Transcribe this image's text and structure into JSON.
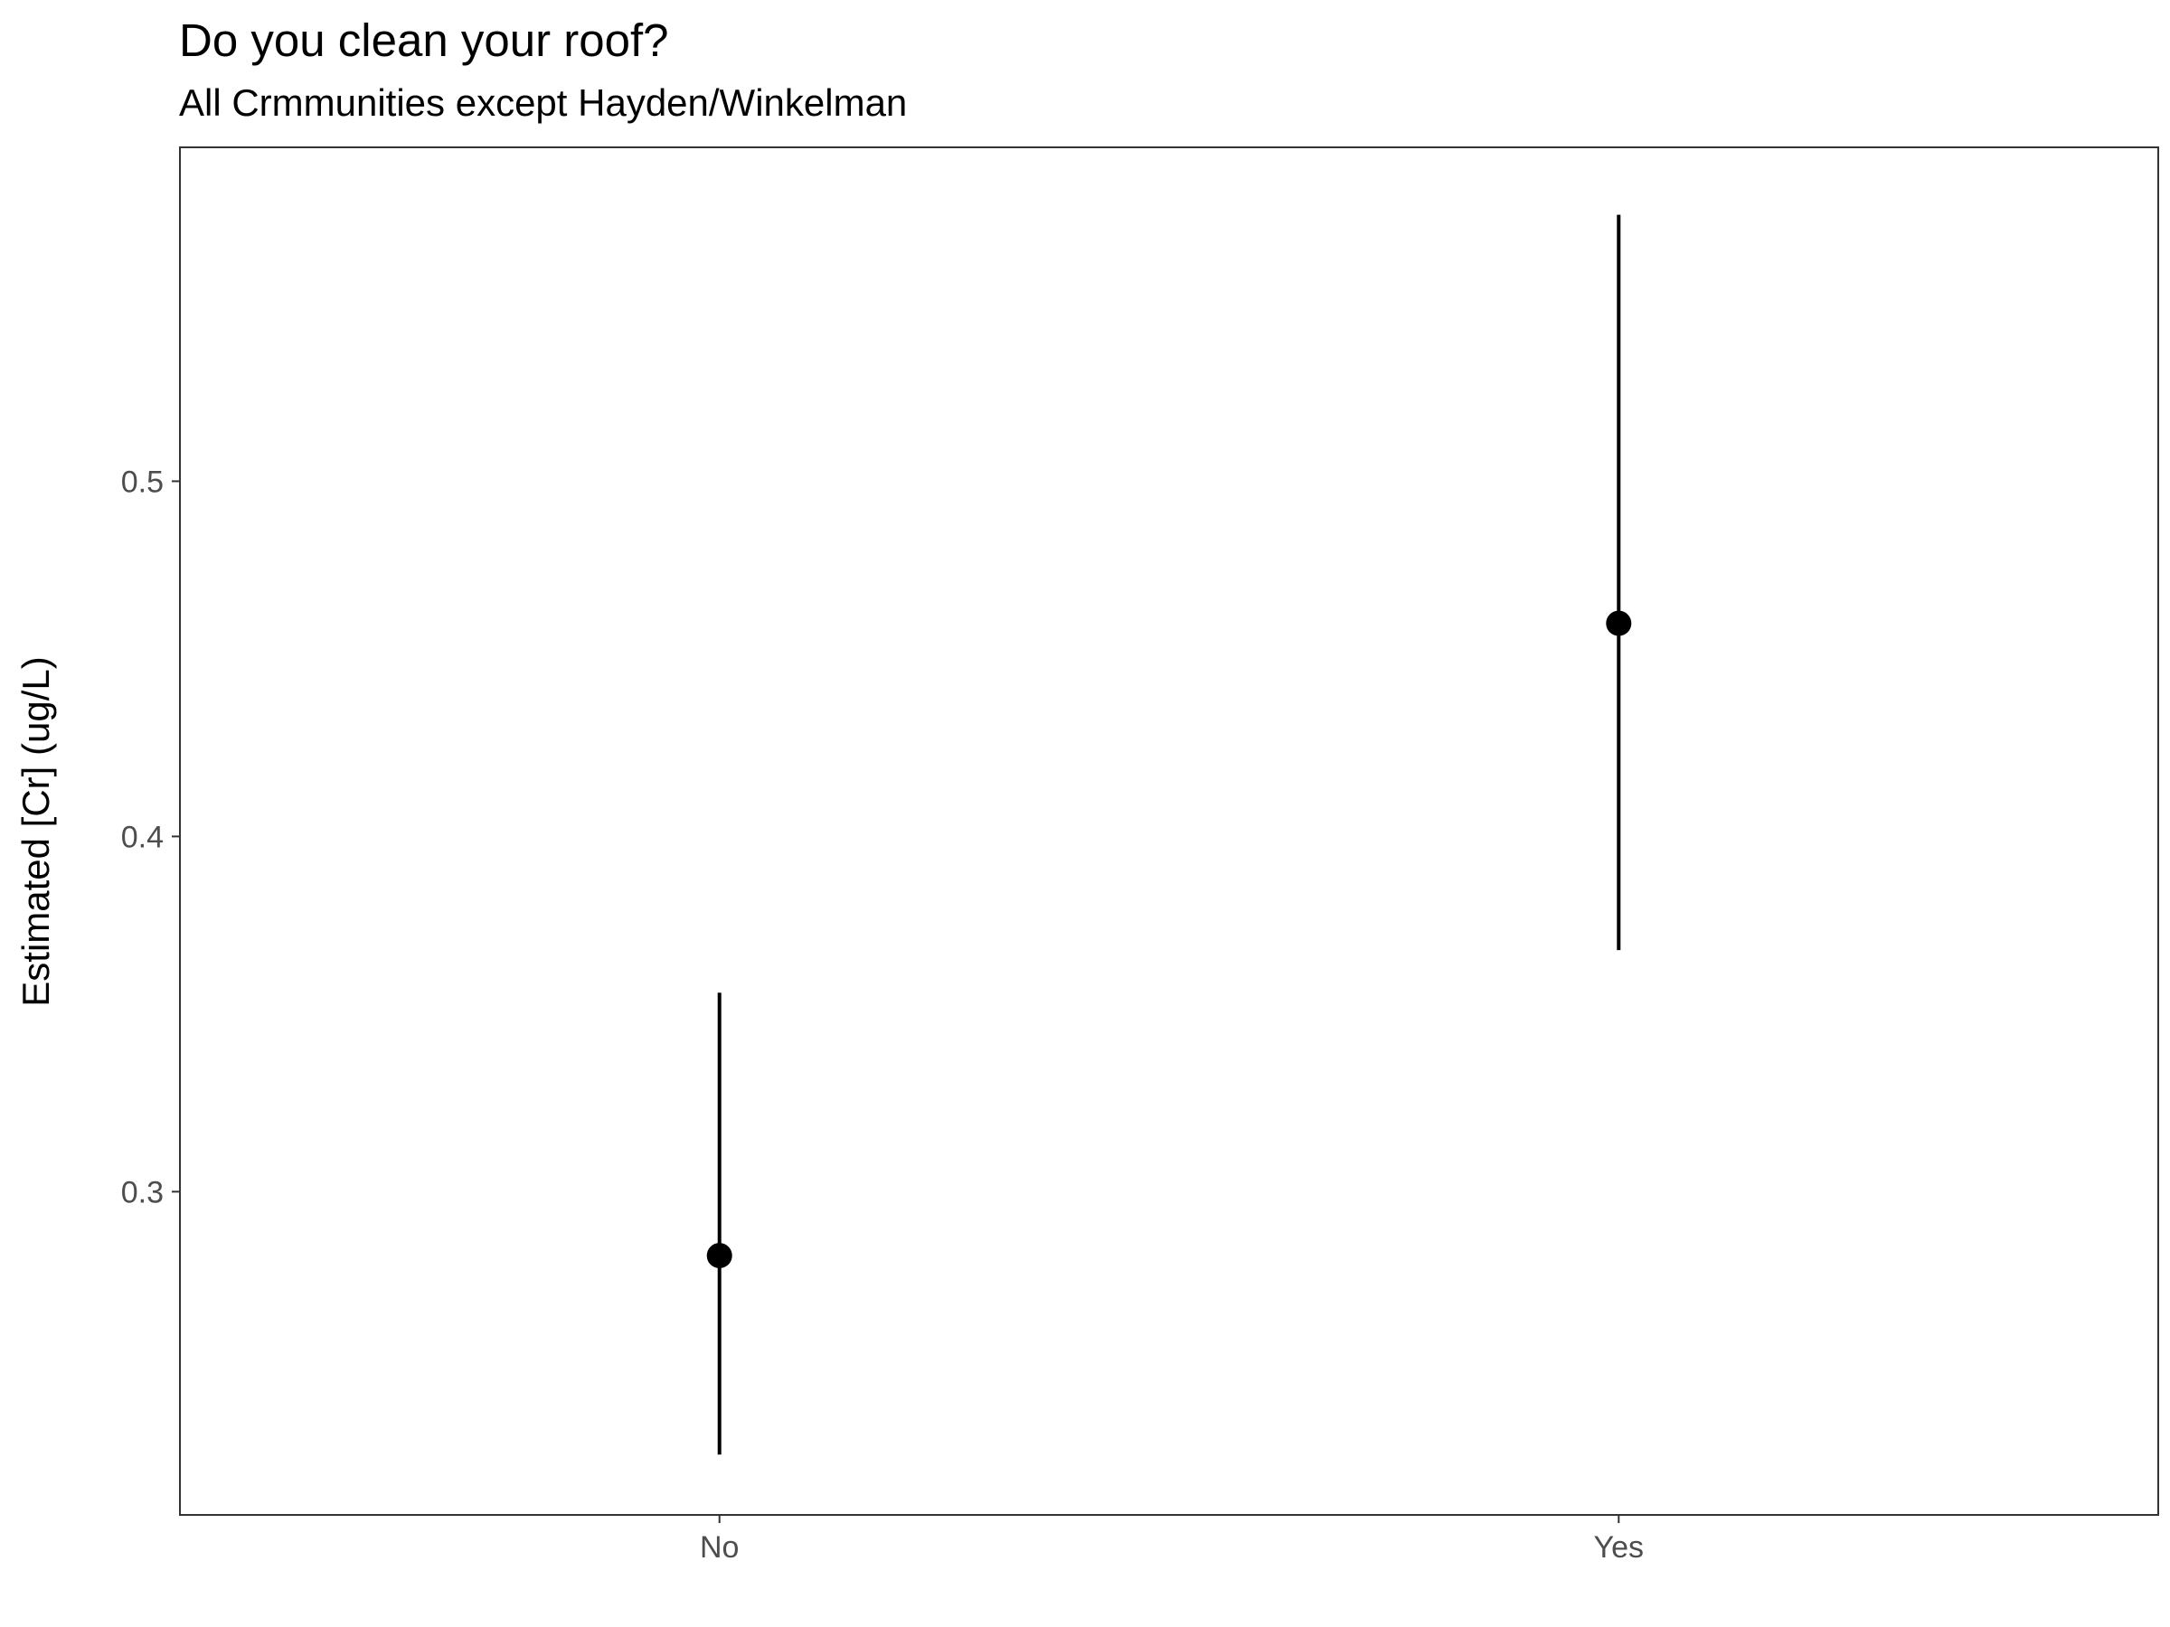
{
  "chart_data": {
    "type": "pointrange",
    "title": "Do you clean your roof?",
    "subtitle": "All Crmmunities except Hayden/Winkelman",
    "xlabel": "",
    "ylabel": "Estimated [Cr] (ug/L)",
    "categories": [
      "No",
      "Yes"
    ],
    "series": [
      {
        "name": "Estimated [Cr]",
        "estimate": [
          0.282,
          0.46
        ],
        "lower": [
          0.226,
          0.368
        ],
        "upper": [
          0.356,
          0.575
        ]
      }
    ],
    "yticks": [
      0.3,
      0.4,
      0.5
    ],
    "ytick_labels": [
      "0.3",
      "0.4",
      "0.5"
    ],
    "ylim": [
      0.209,
      0.594
    ],
    "grid": false,
    "legend": "none",
    "colors": {
      "point": "#000000",
      "panel_border": "#333333",
      "tick_label": "#4d4d4d",
      "tick_mark": "#333333"
    }
  }
}
